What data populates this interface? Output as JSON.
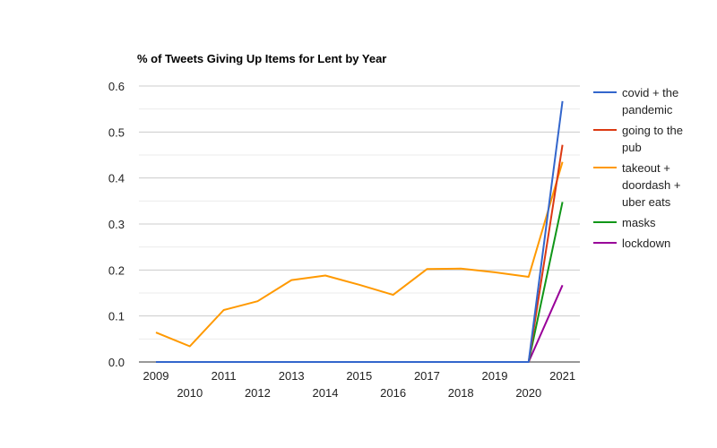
{
  "chart_data": {
    "type": "line",
    "title": "% of Tweets Giving Up Items for Lent by Year",
    "xlabel": "",
    "ylabel": "",
    "x": [
      "2009",
      "2010",
      "2011",
      "2012",
      "2013",
      "2014",
      "2015",
      "2016",
      "2017",
      "2018",
      "2019",
      "2020",
      "2021"
    ],
    "ylim": [
      0,
      0.6
    ],
    "yticks": [
      "0.0",
      "0.1",
      "0.2",
      "0.3",
      "0.4",
      "0.5",
      "0.6"
    ],
    "grid": true,
    "legend_position": "right",
    "series": [
      {
        "name": "covid + the pandemic",
        "color": "#3366cc",
        "values": [
          0,
          0,
          0,
          0,
          0,
          0,
          0,
          0,
          0,
          0,
          0,
          0,
          0.567
        ]
      },
      {
        "name": "going to the pub",
        "color": "#dc3912",
        "values": [
          0,
          0,
          0,
          0,
          0,
          0,
          0,
          0,
          0,
          0,
          0,
          0,
          0.472
        ]
      },
      {
        "name": "takeout + doordash + uber eats",
        "color": "#ff9900",
        "values": [
          0.064,
          0.034,
          0.113,
          0.132,
          0.178,
          0.188,
          0.168,
          0.146,
          0.202,
          0.203,
          0.195,
          0.185,
          0.435
        ]
      },
      {
        "name": "masks",
        "color": "#109618",
        "values": [
          0,
          0,
          0,
          0,
          0,
          0,
          0,
          0,
          0,
          0,
          0,
          0,
          0.348
        ]
      },
      {
        "name": "lockdown",
        "color": "#990099",
        "values": [
          0,
          0,
          0,
          0,
          0,
          0,
          0,
          0,
          0,
          0,
          0,
          0,
          0.167
        ]
      }
    ]
  },
  "legend_lines": [
    [
      "covid + the",
      "pandemic"
    ],
    [
      "going to the",
      "pub"
    ],
    [
      "takeout +",
      "doordash +",
      "uber eats"
    ],
    [
      "masks"
    ],
    [
      "lockdown"
    ]
  ]
}
